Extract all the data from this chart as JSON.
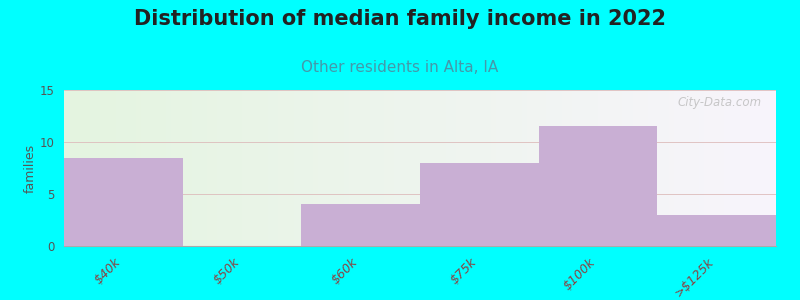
{
  "title": "Distribution of median family income in 2022",
  "subtitle": "Other residents in Alta, IA",
  "categories": [
    "$40k",
    "$50k",
    "$60k",
    "$75k",
    "$100k",
    ">$125k"
  ],
  "values": [
    8.5,
    0,
    4.0,
    8.0,
    11.5,
    3.0
  ],
  "bar_color": "#c9afd4",
  "bg_outer": "#00FFFF",
  "bg_plot_left": "#e4f5e0",
  "bg_plot_right": "#f8f4fc",
  "ylabel": "families",
  "ylim": [
    0,
    15
  ],
  "yticks": [
    0,
    5,
    10,
    15
  ],
  "title_fontsize": 15,
  "subtitle_fontsize": 11,
  "title_color": "#222222",
  "subtitle_color": "#4499aa",
  "tick_label_color": "#884444",
  "watermark": "City-Data.com",
  "grid_color": "#ddbbbb",
  "spine_color": "#aaaaaa"
}
